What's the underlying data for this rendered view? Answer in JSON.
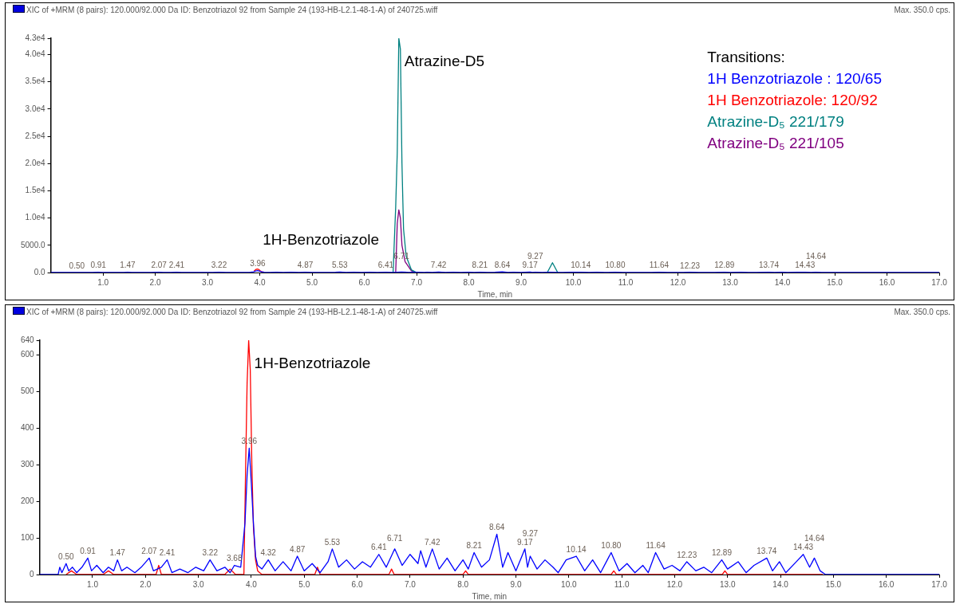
{
  "chart_data": [
    {
      "type": "line",
      "title": "XIC of +MRM (8 pairs): 120.000/92.000 Da ID: Benzotriazol 92 from Sample 24 (193-HB-L2.1-48-1-A) of 240725.wiff",
      "subtitle": "Max. 350.0 cps.",
      "xlabel": "Time, min",
      "legend": "top right",
      "legend_title": "Transitions:",
      "grid": false,
      "xlim": [
        0,
        17
      ],
      "xticks": [
        {
          "value": 1,
          "label": "1.0"
        },
        {
          "value": 2,
          "label": "2.0"
        },
        {
          "value": 3,
          "label": "3.0"
        },
        {
          "value": 4,
          "label": "4.0"
        },
        {
          "value": 5,
          "label": "5.0"
        },
        {
          "value": 6,
          "label": "6.0"
        },
        {
          "value": 7,
          "label": "7.0"
        },
        {
          "value": 8,
          "label": "8.0"
        },
        {
          "value": 9,
          "label": "9.0"
        },
        {
          "value": 10,
          "label": "10.0"
        },
        {
          "value": 11,
          "label": "11.0"
        },
        {
          "value": 12,
          "label": "12.0"
        },
        {
          "value": 13,
          "label": "13.0"
        },
        {
          "value": 14,
          "label": "14.0"
        },
        {
          "value": 15,
          "label": "15.0"
        },
        {
          "value": 16,
          "label": "16.0"
        },
        {
          "value": 17,
          "label": "17.0"
        }
      ],
      "ylim": [
        0,
        43000
      ],
      "yticks": [
        {
          "value": 0,
          "label": "0.0"
        },
        {
          "value": 5000,
          "label": "5000.0"
        },
        {
          "value": 10000,
          "label": "1.0e4"
        },
        {
          "value": 15000,
          "label": "1.5e4"
        },
        {
          "value": 20000,
          "label": "2.0e4"
        },
        {
          "value": 25000,
          "label": "2.5e4"
        },
        {
          "value": 30000,
          "label": "3.0e4"
        },
        {
          "value": 35000,
          "label": "3.5e4"
        },
        {
          "value": 40000,
          "label": "4.0e4"
        },
        {
          "value": 43000,
          "label": "4.3e4"
        }
      ],
      "annotations": [
        {
          "text": "Atrazine-D5",
          "x": 6.66,
          "y": 43000
        },
        {
          "text": "1H-Benzotriazole",
          "x": 3.95,
          "y": 640
        },
        {
          "text": "0.50",
          "x": 0.5,
          "y": 30
        },
        {
          "text": "0.91",
          "x": 0.91,
          "y": 45
        },
        {
          "text": "1.47",
          "x": 1.47,
          "y": 40
        },
        {
          "text": "2.07",
          "x": 2.07,
          "y": 45
        },
        {
          "text": "2.41",
          "x": 2.41,
          "y": 40
        },
        {
          "text": "3.22",
          "x": 3.22,
          "y": 40
        },
        {
          "text": "3.96",
          "x": 3.96,
          "y": 345
        },
        {
          "text": "4.87",
          "x": 4.87,
          "y": 50
        },
        {
          "text": "5.53",
          "x": 5.53,
          "y": 70
        },
        {
          "text": "6.41",
          "x": 6.41,
          "y": 55
        },
        {
          "text": "6.71",
          "x": 6.71,
          "y": 70
        },
        {
          "text": "7.42",
          "x": 7.42,
          "y": 70
        },
        {
          "text": "8.21",
          "x": 8.21,
          "y": 60
        },
        {
          "text": "8.64",
          "x": 8.64,
          "y": 110
        },
        {
          "text": "9.17",
          "x": 9.17,
          "y": 70
        },
        {
          "text": "9.27",
          "x": 9.27,
          "y": 50
        },
        {
          "text": "10.14",
          "x": 10.14,
          "y": 50
        },
        {
          "text": "10.80",
          "x": 10.8,
          "y": 60
        },
        {
          "text": "11.64",
          "x": 11.64,
          "y": 60
        },
        {
          "text": "12.23",
          "x": 12.23,
          "y": 35
        },
        {
          "text": "12.89",
          "x": 12.89,
          "y": 40
        },
        {
          "text": "13.74",
          "x": 13.74,
          "y": 45
        },
        {
          "text": "14.43",
          "x": 14.43,
          "y": 55
        },
        {
          "text": "14.64",
          "x": 14.64,
          "y": 45
        }
      ],
      "series": [
        {
          "name": "1H Benzotriazole : 120/65",
          "color": "#0000ff",
          "x": [
            0,
            0.35,
            0.38,
            0.42,
            0.5,
            0.55,
            0.62,
            0.7,
            0.8,
            0.91,
            0.98,
            1.08,
            1.2,
            1.3,
            1.4,
            1.47,
            1.55,
            1.65,
            1.8,
            1.92,
            2.07,
            2.15,
            2.3,
            2.41,
            2.5,
            2.65,
            2.8,
            2.95,
            3.1,
            3.22,
            3.35,
            3.5,
            3.6,
            3.68,
            3.8,
            3.88,
            3.92,
            3.96,
            4.0,
            4.04,
            4.08,
            4.12,
            4.2,
            4.32,
            4.45,
            4.6,
            4.75,
            4.87,
            5.0,
            5.15,
            5.3,
            5.45,
            5.53,
            5.65,
            5.8,
            5.95,
            6.1,
            6.25,
            6.41,
            6.55,
            6.71,
            6.85,
            7.0,
            7.15,
            7.2,
            7.3,
            7.42,
            7.55,
            7.7,
            7.85,
            8.0,
            8.1,
            8.21,
            8.35,
            8.5,
            8.64,
            8.75,
            8.85,
            9.0,
            9.17,
            9.22,
            9.27,
            9.4,
            9.55,
            9.7,
            9.8,
            9.95,
            10.14,
            10.3,
            10.45,
            10.6,
            10.8,
            10.95,
            11.1,
            11.25,
            11.4,
            11.5,
            11.64,
            11.8,
            11.95,
            12.1,
            12.23,
            12.4,
            12.55,
            12.7,
            12.89,
            13.0,
            13.2,
            13.35,
            13.5,
            13.74,
            13.85,
            13.98,
            14.1,
            14.3,
            14.43,
            14.55,
            14.64,
            14.75,
            14.85,
            17
          ],
          "values": [
            0,
            0,
            20,
            5,
            30,
            10,
            20,
            5,
            20,
            45,
            10,
            25,
            5,
            20,
            10,
            40,
            10,
            20,
            5,
            20,
            45,
            10,
            20,
            40,
            5,
            15,
            5,
            20,
            10,
            40,
            10,
            20,
            5,
            25,
            20,
            140,
            270,
            345,
            250,
            140,
            50,
            25,
            15,
            40,
            10,
            35,
            10,
            50,
            10,
            30,
            5,
            35,
            70,
            20,
            40,
            15,
            35,
            20,
            55,
            20,
            70,
            25,
            55,
            30,
            65,
            20,
            70,
            15,
            45,
            10,
            40,
            15,
            60,
            20,
            40,
            110,
            20,
            60,
            10,
            70,
            20,
            50,
            15,
            40,
            20,
            5,
            40,
            50,
            10,
            40,
            5,
            60,
            10,
            30,
            5,
            25,
            5,
            60,
            15,
            25,
            10,
            35,
            10,
            20,
            5,
            40,
            15,
            35,
            5,
            25,
            45,
            10,
            35,
            5,
            35,
            55,
            20,
            45,
            10,
            0,
            0
          ]
        },
        {
          "name": "1H Benzotriazole: 120/92",
          "color": "#ff0000",
          "x": [
            3.89,
            3.92,
            3.95,
            3.98,
            4.01,
            4.04,
            4.08
          ],
          "values": [
            270,
            520,
            640,
            560,
            300,
            130,
            40
          ]
        },
        {
          "name": "Atrazine-D₅ 221/179",
          "color": "#008080",
          "x": [
            6.55,
            6.6,
            6.63,
            6.66,
            6.69,
            6.72,
            6.75,
            6.8,
            6.9,
            7.0,
            8.0,
            9.5,
            9.6,
            9.7
          ],
          "values": [
            0,
            12000,
            22000,
            43000,
            41000,
            20000,
            8000,
            3000,
            500,
            0,
            null,
            0,
            1800,
            0
          ]
        },
        {
          "name": "Atrazine-D₅ 221/105",
          "color": "#800080",
          "x": [
            6.6,
            6.63,
            6.66,
            6.69,
            6.72,
            6.78,
            6.9,
            7.0
          ],
          "values": [
            0,
            9000,
            11500,
            10000,
            5000,
            2000,
            300,
            0
          ]
        }
      ]
    },
    {
      "type": "line",
      "title": "XIC of +MRM (8 pairs): 120.000/92.000 Da ID: Benzotriazol 92 from Sample 24 (193-HB-L2.1-48-1-A) of 240725.wiff",
      "subtitle": "Max. 350.0 cps.",
      "xlabel": "Time, min",
      "grid": false,
      "xlim": [
        0,
        17
      ],
      "xticks": [
        {
          "value": 1,
          "label": "1.0"
        },
        {
          "value": 2,
          "label": "2.0"
        },
        {
          "value": 3,
          "label": "3.0"
        },
        {
          "value": 4,
          "label": "4.0"
        },
        {
          "value": 5,
          "label": "5.0"
        },
        {
          "value": 6,
          "label": "6.0"
        },
        {
          "value": 7,
          "label": "7.0"
        },
        {
          "value": 8,
          "label": "8.0"
        },
        {
          "value": 9,
          "label": "9.0"
        },
        {
          "value": 10,
          "label": "10.0"
        },
        {
          "value": 11,
          "label": "11.0"
        },
        {
          "value": 12,
          "label": "12.0"
        },
        {
          "value": 13,
          "label": "13.0"
        },
        {
          "value": 14,
          "label": "14.0"
        },
        {
          "value": 15,
          "label": "15.0"
        },
        {
          "value": 16,
          "label": "16.0"
        },
        {
          "value": 17,
          "label": "17.0"
        }
      ],
      "ylim": [
        0,
        640
      ],
      "yticks": [
        0,
        100,
        200,
        300,
        400,
        500,
        600,
        640
      ],
      "annotations": [
        {
          "text": "1H-Benzotriazole",
          "x": 3.95,
          "y": 640
        },
        {
          "text": "0.50",
          "x": 0.5,
          "y": 30
        },
        {
          "text": "0.91",
          "x": 0.91,
          "y": 45
        },
        {
          "text": "1.47",
          "x": 1.47,
          "y": 40
        },
        {
          "text": "2.07",
          "x": 2.07,
          "y": 45
        },
        {
          "text": "2.41",
          "x": 2.41,
          "y": 40
        },
        {
          "text": "3.22",
          "x": 3.22,
          "y": 40
        },
        {
          "text": "3.68",
          "x": 3.68,
          "y": 25
        },
        {
          "text": "3.96",
          "x": 3.96,
          "y": 345
        },
        {
          "text": "4.32",
          "x": 4.32,
          "y": 40
        },
        {
          "text": "4.87",
          "x": 4.87,
          "y": 50
        },
        {
          "text": "5.53",
          "x": 5.53,
          "y": 70
        },
        {
          "text": "6.41",
          "x": 6.41,
          "y": 55
        },
        {
          "text": "6.71",
          "x": 6.71,
          "y": 70
        },
        {
          "text": "7.42",
          "x": 7.42,
          "y": 70
        },
        {
          "text": "8.21",
          "x": 8.21,
          "y": 60
        },
        {
          "text": "8.64",
          "x": 8.64,
          "y": 110
        },
        {
          "text": "9.17",
          "x": 9.17,
          "y": 70
        },
        {
          "text": "9.27",
          "x": 9.27,
          "y": 50
        },
        {
          "text": "10.14",
          "x": 10.14,
          "y": 50
        },
        {
          "text": "10.80",
          "x": 10.8,
          "y": 60
        },
        {
          "text": "11.64",
          "x": 11.64,
          "y": 60
        },
        {
          "text": "12.23",
          "x": 12.23,
          "y": 35
        },
        {
          "text": "12.89",
          "x": 12.89,
          "y": 40
        },
        {
          "text": "13.74",
          "x": 13.74,
          "y": 45
        },
        {
          "text": "14.43",
          "x": 14.43,
          "y": 55
        },
        {
          "text": "14.64",
          "x": 14.64,
          "y": 45
        }
      ],
      "series": [
        {
          "color": "#0000ff",
          "x": [
            0,
            0.35,
            0.38,
            0.42,
            0.5,
            0.55,
            0.62,
            0.7,
            0.8,
            0.91,
            0.98,
            1.08,
            1.2,
            1.3,
            1.4,
            1.47,
            1.55,
            1.65,
            1.8,
            1.92,
            2.07,
            2.15,
            2.3,
            2.41,
            2.5,
            2.65,
            2.8,
            2.95,
            3.1,
            3.22,
            3.35,
            3.5,
            3.6,
            3.68,
            3.8,
            3.88,
            3.92,
            3.96,
            4.0,
            4.04,
            4.08,
            4.12,
            4.2,
            4.32,
            4.45,
            4.6,
            4.75,
            4.87,
            5.0,
            5.15,
            5.3,
            5.45,
            5.53,
            5.65,
            5.8,
            5.95,
            6.1,
            6.25,
            6.41,
            6.55,
            6.71,
            6.85,
            7.0,
            7.15,
            7.2,
            7.3,
            7.42,
            7.55,
            7.7,
            7.85,
            8.0,
            8.1,
            8.21,
            8.35,
            8.5,
            8.64,
            8.75,
            8.85,
            9.0,
            9.17,
            9.22,
            9.27,
            9.4,
            9.55,
            9.7,
            9.8,
            9.95,
            10.14,
            10.3,
            10.45,
            10.6,
            10.8,
            10.95,
            11.1,
            11.25,
            11.4,
            11.5,
            11.64,
            11.8,
            11.95,
            12.1,
            12.23,
            12.4,
            12.55,
            12.7,
            12.89,
            13.0,
            13.2,
            13.35,
            13.5,
            13.74,
            13.85,
            13.98,
            14.1,
            14.3,
            14.43,
            14.55,
            14.64,
            14.75,
            14.85,
            17
          ],
          "values": [
            0,
            0,
            20,
            5,
            30,
            10,
            20,
            5,
            20,
            45,
            10,
            25,
            5,
            20,
            10,
            40,
            10,
            20,
            5,
            20,
            45,
            10,
            20,
            40,
            5,
            15,
            5,
            20,
            10,
            40,
            10,
            20,
            5,
            25,
            20,
            140,
            270,
            345,
            250,
            140,
            50,
            25,
            15,
            40,
            10,
            35,
            10,
            50,
            10,
            30,
            5,
            35,
            70,
            20,
            40,
            15,
            35,
            20,
            55,
            20,
            70,
            25,
            55,
            30,
            65,
            20,
            70,
            15,
            45,
            10,
            40,
            15,
            60,
            20,
            40,
            110,
            20,
            60,
            10,
            70,
            20,
            50,
            15,
            40,
            20,
            5,
            40,
            50,
            10,
            40,
            5,
            60,
            10,
            30,
            5,
            25,
            5,
            60,
            15,
            25,
            10,
            35,
            10,
            20,
            5,
            40,
            15,
            35,
            5,
            25,
            45,
            10,
            35,
            5,
            35,
            55,
            20,
            45,
            10,
            0,
            0
          ]
        },
        {
          "color": "#ff0000",
          "x": [
            0.5,
            0.6,
            0.7,
            1.2,
            1.3,
            1.4,
            2.2,
            2.25,
            2.3,
            3.5,
            3.6,
            3.7,
            3.86,
            3.89,
            3.92,
            3.95,
            3.98,
            4.01,
            4.04,
            4.08,
            4.12,
            4.2,
            5.2,
            5.25,
            5.3,
            6.6,
            6.65,
            6.7,
            8.0,
            8.05,
            8.1,
            10.8,
            10.85,
            10.9,
            12.9,
            12.95,
            13.0,
            14.8
          ],
          "values": [
            0,
            10,
            0,
            0,
            10,
            0,
            0,
            25,
            0,
            0,
            15,
            0,
            0,
            270,
            520,
            640,
            560,
            300,
            130,
            40,
            10,
            0,
            0,
            20,
            0,
            0,
            15,
            0,
            0,
            10,
            0,
            0,
            10,
            0,
            0,
            10,
            0,
            0
          ]
        }
      ]
    }
  ]
}
